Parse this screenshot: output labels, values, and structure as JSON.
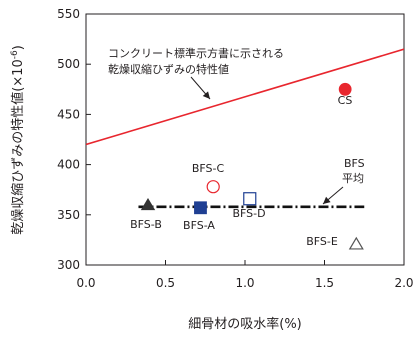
{
  "chart_data": {
    "type": "scatter",
    "xlabel": "細骨材の吸水率(%)",
    "ylabel": "乾燥収縮ひずみの特性値(×10",
    "ylabel_exp": "-6",
    "ylabel_close": ")",
    "xlim": [
      0.0,
      2.0
    ],
    "ylim": [
      300,
      550
    ],
    "x_ticks": [
      0.0,
      0.5,
      1.0,
      1.5,
      2.0
    ],
    "x_tick_labels": [
      "0.0",
      "0.5",
      "1.0",
      "1.5",
      "2.0"
    ],
    "y_ticks": [
      300,
      350,
      400,
      450,
      500,
      550
    ],
    "y_tick_labels": [
      "300",
      "350",
      "400",
      "450",
      "500",
      "550"
    ],
    "points": [
      {
        "label": "CS",
        "x": 1.63,
        "y": 475,
        "marker": "circle",
        "filled": true,
        "color": "#e8262e"
      },
      {
        "label": "BFS-C",
        "x": 0.8,
        "y": 378,
        "marker": "circle",
        "filled": false,
        "color": "#e8262e"
      },
      {
        "label": "BFS-A",
        "x": 0.72,
        "y": 357,
        "marker": "square",
        "filled": true,
        "color": "#1f3f93"
      },
      {
        "label": "BFS-D",
        "x": 1.03,
        "y": 366,
        "marker": "square",
        "filled": false,
        "color": "#1f3f93"
      },
      {
        "label": "BFS-B",
        "x": 0.39,
        "y": 360,
        "marker": "triangle",
        "filled": true,
        "color": "#333333"
      },
      {
        "label": "BFS-E",
        "x": 1.7,
        "y": 321,
        "marker": "triangle",
        "filled": false,
        "color": "#555555"
      }
    ],
    "lines": [
      {
        "name": "コンクリート標準示方書に示される",
        "name2": "乾燥収縮ひずみの特性値",
        "x": [
          0.0,
          2.0
        ],
        "y": [
          420,
          515
        ],
        "color": "#e8262e",
        "style": "solid"
      },
      {
        "name": "BFS",
        "name2": "平均",
        "x": [
          0.33,
          1.75
        ],
        "y": [
          358,
          358
        ],
        "color": "#111111",
        "style": "dash-dot"
      }
    ]
  }
}
